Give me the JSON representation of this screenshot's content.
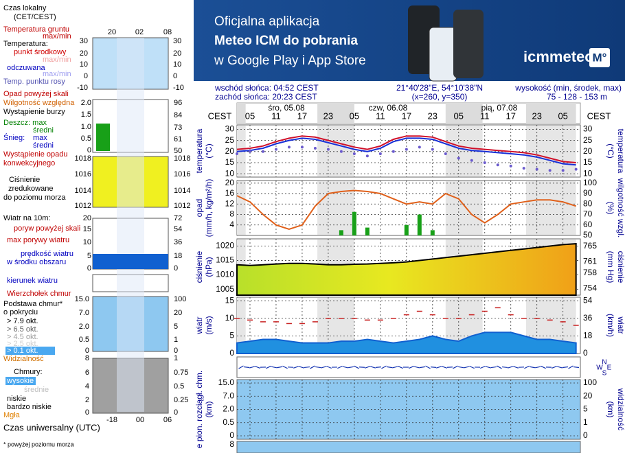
{
  "banner": {
    "line1": "Oficjalna aplikacja",
    "line2": "Meteo ICM do pobrania",
    "line3": "w Google Play i App Store",
    "logo": "icmmeteo",
    "badge": "M°"
  },
  "info": {
    "sunrise": "wschód słońca: 04:52 CEST",
    "sunset": "zachód słońca: 20:23 CEST",
    "coords": "21°40'28\"E, 54°10'38\"N",
    "grid": "(x=260,  y=350)",
    "height_label": "wysokość (min, środek, max)",
    "height_values": "75 - 128 - 153 m"
  },
  "time_axis": {
    "unit": "CEST",
    "days": [
      "śro, 05.08",
      "czw, 06.08",
      "pią, 07.08"
    ],
    "hours": [
      {
        "value": 3,
        "label": "05"
      },
      {
        "value": 9,
        "label": "11"
      },
      {
        "value": 15,
        "label": "17"
      },
      {
        "value": 21,
        "label": "23"
      },
      {
        "value": 27,
        "label": "05"
      },
      {
        "value": 33,
        "label": "11"
      },
      {
        "value": 39,
        "label": "17"
      },
      {
        "value": 45,
        "label": "23"
      },
      {
        "value": 51,
        "label": "05"
      },
      {
        "value": 57,
        "label": "11"
      },
      {
        "value": 63,
        "label": "17"
      },
      {
        "value": 69,
        "label": "23"
      },
      {
        "value": 75,
        "label": "05"
      }
    ]
  },
  "compass": [
    "N",
    "W",
    "E",
    "S"
  ],
  "bottom_strip_label": "8",
  "chart_data": [
    {
      "type": "line",
      "ylabel": "temperatura",
      "yunit": "(°C)",
      "x": [
        0,
        3,
        6,
        9,
        12,
        15,
        18,
        21,
        24,
        27,
        30,
        33,
        36,
        39,
        42,
        45,
        48,
        51,
        54,
        57,
        60,
        63,
        66,
        69,
        72,
        75,
        78
      ],
      "xlim": [
        0,
        79
      ],
      "ylim": [
        8.5,
        32
      ],
      "yticks": [
        10,
        15,
        20,
        25,
        30
      ],
      "grid": true,
      "series": [
        {
          "kind": "line",
          "color": "#d0102a",
          "values": [
            21,
            21.5,
            22.5,
            24.5,
            26,
            27,
            26.5,
            25,
            23.5,
            22,
            21,
            22.5,
            25.5,
            27,
            27,
            26.5,
            24.5,
            22.5,
            21.5,
            21,
            20.5,
            20,
            19.5,
            18.5,
            17,
            15.5,
            15
          ]
        },
        {
          "kind": "line",
          "color": "#1830d8",
          "values": [
            20,
            20.5,
            21.5,
            23.5,
            25,
            26,
            25.5,
            24,
            22.5,
            21,
            20,
            21.5,
            24.5,
            26,
            26,
            25.5,
            23.5,
            21.5,
            20.5,
            20,
            19.5,
            19,
            18.5,
            17.5,
            16,
            14.5,
            14
          ]
        },
        {
          "kind": "dots",
          "color": "#6a5acd",
          "values": [
            19,
            20,
            20,
            21,
            22,
            22,
            21.5,
            21,
            20,
            19,
            18,
            19,
            20,
            21,
            22,
            21,
            19,
            17,
            16,
            15,
            14,
            13.5,
            12.5,
            12,
            11.5,
            11.5,
            12
          ]
        }
      ]
    },
    {
      "type": "bar",
      "ylabel": "opad",
      "yunit": "(mm/h, kg/m²/h)",
      "y2label": "wilgotność wzgl.",
      "y2unit": "(%)",
      "x": [
        0,
        3,
        6,
        9,
        12,
        15,
        18,
        21,
        24,
        27,
        30,
        33,
        36,
        39,
        42,
        45,
        48,
        51,
        54,
        57,
        60,
        63,
        66,
        69,
        72,
        75,
        78
      ],
      "xlim": [
        0,
        79
      ],
      "ylim": [
        0,
        21
      ],
      "yticks": [
        4,
        8,
        12,
        16,
        20
      ],
      "y2lim": [
        50,
        102.5
      ],
      "y2ticks": [
        50,
        60,
        70,
        80,
        90,
        100
      ],
      "grid": true,
      "series": [
        {
          "kind": "bar",
          "color": "#18a018",
          "values": [
            0,
            0,
            0,
            0,
            0,
            0,
            0,
            0,
            2,
            9,
            3,
            0,
            0,
            4,
            8,
            2,
            0,
            0,
            0,
            0,
            0,
            0,
            0,
            0,
            0,
            0,
            0
          ]
        },
        {
          "kind": "line",
          "axis": "y2",
          "color": "#e0601a",
          "values": [
            88,
            82,
            70,
            60,
            56,
            60,
            78,
            90,
            92,
            93,
            92,
            90,
            85,
            80,
            82,
            80,
            90,
            85,
            70,
            62,
            70,
            80,
            82,
            84,
            84,
            82,
            78
          ]
        }
      ]
    },
    {
      "type": "area",
      "ylabel": "ciśnienie",
      "yunit": "(hPa)",
      "y2label": "ciśnienie",
      "y2unit": "(mm Hg)",
      "x": [
        0,
        3,
        6,
        9,
        12,
        15,
        18,
        21,
        24,
        27,
        30,
        33,
        36,
        39,
        42,
        45,
        48,
        51,
        54,
        57,
        60,
        63,
        66,
        69,
        72,
        75,
        78
      ],
      "xlim": [
        0,
        79
      ],
      "ylim": [
        1003,
        1022.5
      ],
      "yticks": [
        1005,
        1010,
        1015,
        1020
      ],
      "y2lim": [
        752.3,
        766.9
      ],
      "y2ticks": [
        754,
        758,
        761,
        765
      ],
      "grid": true,
      "series": [
        {
          "kind": "area",
          "color": "#000000",
          "values": [
            1013.5,
            1013.3,
            1013.5,
            1013.8,
            1014,
            1014,
            1013.8,
            1013.5,
            1013.5,
            1013.7,
            1013.8,
            1014,
            1014.2,
            1014.5,
            1015,
            1015.5,
            1016,
            1016.5,
            1017,
            1017.5,
            1018,
            1018.5,
            1019,
            1019.5,
            1020,
            1020.5,
            1020.8
          ]
        }
      ]
    },
    {
      "type": "area",
      "ylabel": "wiatr",
      "yunit": "(m/s)",
      "y2label": "wiatr",
      "y2unit": "(km/h)",
      "x": [
        0,
        3,
        6,
        9,
        12,
        15,
        18,
        21,
        24,
        27,
        30,
        33,
        36,
        39,
        42,
        45,
        48,
        51,
        54,
        57,
        60,
        63,
        66,
        69,
        72,
        75,
        78
      ],
      "xlim": [
        0,
        79
      ],
      "ylim": [
        0,
        16
      ],
      "yticks": [
        0,
        5,
        10,
        15
      ],
      "y2lim": [
        0,
        57.6
      ],
      "y2ticks": [
        0,
        18,
        36,
        54
      ],
      "grid": true,
      "series": [
        {
          "kind": "area",
          "color": "#1060d0",
          "values": [
            3,
            3.5,
            4,
            4,
            3.5,
            3,
            3,
            3,
            3.5,
            3.5,
            4,
            3.5,
            3,
            3.5,
            4,
            5,
            4,
            3.5,
            5,
            6,
            6,
            6,
            5,
            4,
            4,
            3.5,
            3
          ]
        },
        {
          "kind": "dash",
          "color": "#c82020",
          "values": [
            10,
            9.5,
            9,
            9,
            8.5,
            8.5,
            9,
            10,
            10,
            10,
            9.5,
            9.5,
            10,
            11,
            12,
            11,
            10,
            10,
            11,
            12,
            13,
            11,
            10,
            10,
            9.5,
            9,
            8
          ]
        }
      ]
    },
    {
      "type": "cloud",
      "ylabel": "e pion. rozciągł. chm.",
      "yunit": "(km)",
      "y2label": "widzialność",
      "y2unit": "(km)",
      "grid": true,
      "yticks": [
        {
          "value": 15,
          "label": "15.0"
        },
        {
          "value": 7,
          "label": "7.0"
        },
        {
          "value": 2,
          "label": "2.0"
        },
        0.5,
        0
      ],
      "y2ticks": [
        100,
        20,
        5,
        1,
        0
      ]
    }
  ],
  "legend_panel": {
    "items": [
      {
        "text": "Czas lokalny",
        "color": "#000000"
      },
      {
        "text": "(CET/CEST)",
        "color": "#000000"
      },
      {
        "text": "Temperatura gruntu",
        "color": "#c00000"
      },
      {
        "text": "max/min",
        "color": "#c00000"
      },
      {
        "text": "Temperatura:",
        "color": "#000000"
      },
      {
        "text": "punkt środkowy",
        "color": "#d00000"
      },
      {
        "text": "max/min",
        "color": "#f0a0a0"
      },
      {
        "text": "odczuwana",
        "color": "#0000c0"
      },
      {
        "text": "max/min",
        "color": "#a0a0f0"
      },
      {
        "text": "Temp. punktu rosy",
        "color": "#5050b0"
      },
      {
        "text": "Opad powyżej skali",
        "color": "#c00000"
      },
      {
        "text": "Wilgotność względna",
        "color": "#d06000"
      },
      {
        "text": "Wystąpienie burzy",
        "color": "#000000"
      },
      {
        "text": "Deszcz: max",
        "color": "#008000"
      },
      {
        "text": "średni",
        "color": "#008000"
      },
      {
        "text": "Śnieg:",
        "color": "#0000c0"
      },
      {
        "text": "max",
        "color": "#0000c0"
      },
      {
        "text": "średni",
        "color": "#0000c0"
      },
      {
        "text": "Wystąpienie opadu",
        "color": "#c00000"
      },
      {
        "text": "konwekcyjnego",
        "color": "#c00000"
      },
      {
        "text": "Ciśnienie",
        "color": "#000000"
      },
      {
        "text": "zredukowane",
        "color": "#000000"
      },
      {
        "text": "do poziomu morza",
        "color": "#000000"
      },
      {
        "text": "Wiatr na 10m:",
        "color": "#000000"
      },
      {
        "text": "poryw powyżej skali",
        "color": "#c00000"
      },
      {
        "text": "max porywy wiatru",
        "color": "#c00000"
      },
      {
        "text": "prędkość wiatru",
        "color": "#0000c0"
      },
      {
        "text": "w środku obszaru",
        "color": "#0000c0"
      },
      {
        "text": "kierunek wiatru",
        "color": "#0000c0"
      },
      {
        "text": "Wierzchołek chmur",
        "color": "#c00000"
      },
      {
        "text": "Podstawa chmur*",
        "color": "#000000"
      },
      {
        "text": "o pokryciu",
        "color": "#000000"
      },
      {
        "text": "> 7.9 okt.",
        "color": "#000000"
      },
      {
        "text": "> 6.5 okt.",
        "color": "#606060"
      },
      {
        "text": "> 4.5 okt.",
        "color": "#a0a0a0"
      },
      {
        "text": "> 2.5 okt.",
        "color": "#d0d0d0"
      },
      {
        "text": "> 0.1 okt.",
        "color": "#ffffff"
      },
      {
        "text": "Widzialność",
        "color": "#d07000"
      },
      {
        "text": "Chmury:",
        "color": "#000000"
      },
      {
        "text": "wysokie",
        "color": "#ffffff"
      },
      {
        "text": "średnie",
        "color": "#c0c0c0"
      },
      {
        "text": "niskie",
        "color": "#000000"
      },
      {
        "text": "bardzo niskie",
        "color": "#000000"
      },
      {
        "text": "Mgła",
        "color": "#e08000"
      },
      {
        "text": "Czas uniwersalny (UTC)",
        "color": "#000000"
      },
      {
        "text": "* powyżej poziomu morza",
        "color": "#000000"
      }
    ],
    "scale_labels": [
      "20",
      "02",
      "08",
      "30",
      "20",
      "10",
      "0",
      "-10",
      "30",
      "20",
      "10",
      "0",
      "-10",
      "2.0",
      "1.5",
      "1.0",
      "0.5",
      "0",
      "96",
      "84",
      "73",
      "61",
      "50",
      "1018",
      "1016",
      "1014",
      "1012",
      "1018",
      "1016",
      "1014",
      "1012",
      "20",
      "15",
      "10",
      "5",
      "0",
      "72",
      "54",
      "36",
      "18",
      "0",
      "15.0",
      "7.0",
      "2.0",
      "0.5",
      "0",
      "100",
      "20",
      "5",
      "1",
      "0",
      "8",
      "6",
      "4",
      "2",
      "0",
      "1",
      "0.75",
      "0.5",
      "0.25",
      "0",
      "-18",
      "00",
      "06"
    ]
  }
}
